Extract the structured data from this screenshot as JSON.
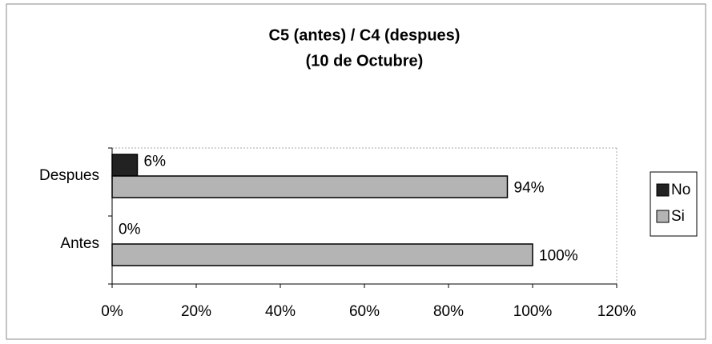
{
  "chart_data": {
    "type": "barh",
    "title": [
      "C5 (antes) / C4 (despues)",
      "(10 de Octubre)"
    ],
    "categories": [
      "Despues",
      "Antes"
    ],
    "series": [
      {
        "name": "No",
        "color": "#222222",
        "values": [
          6,
          0
        ],
        "value_labels": [
          "6%",
          "0%"
        ]
      },
      {
        "name": "Si",
        "color": "#b4b4b4",
        "values": [
          94,
          100
        ],
        "value_labels": [
          "94%",
          "100%"
        ]
      }
    ],
    "xlim": [
      0,
      120
    ],
    "xticks": [
      {
        "value": 0,
        "label": "0%"
      },
      {
        "value": 20,
        "label": "20%"
      },
      {
        "value": 40,
        "label": "40%"
      },
      {
        "value": 60,
        "label": "60%"
      },
      {
        "value": 80,
        "label": "80%"
      },
      {
        "value": 100,
        "label": "100%"
      },
      {
        "value": 120,
        "label": "120%"
      }
    ],
    "legend": "right"
  }
}
